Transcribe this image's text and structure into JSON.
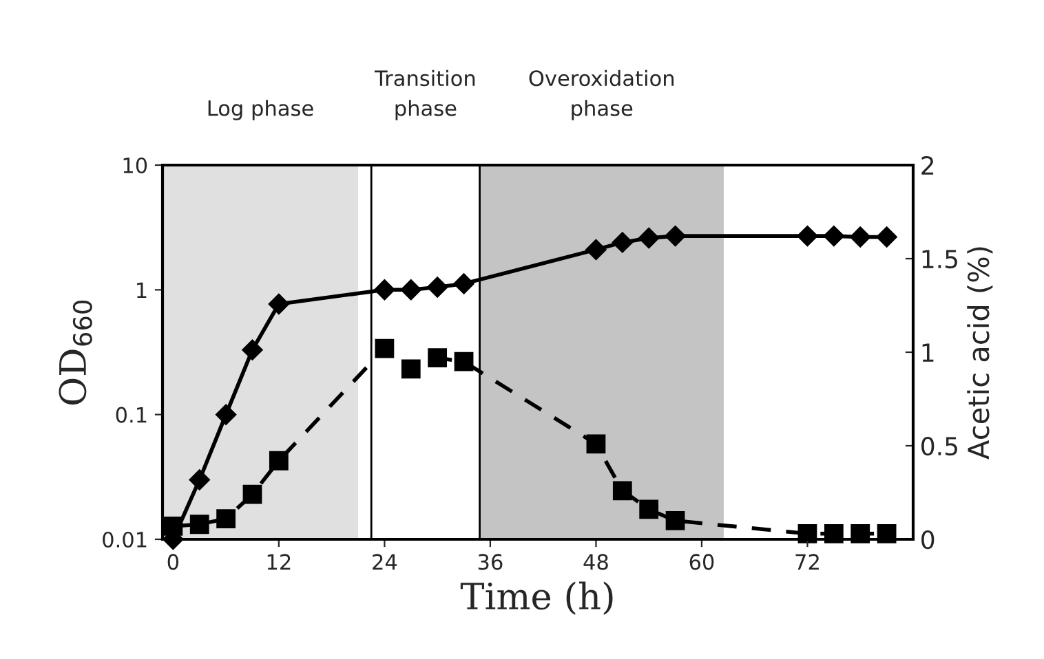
{
  "chart_data": {
    "type": "line",
    "xlabel": "Time (h)",
    "ylabel": "OD$_{660}$",
    "y2label": "Acetic acid (%)",
    "x": [
      0,
      3,
      6,
      9,
      12,
      24,
      27,
      30,
      33,
      48,
      51,
      54,
      57,
      72,
      75,
      78,
      81
    ],
    "series": [
      {
        "color": "#000000",
        "marker": "diamond",
        "line_style": "solid",
        "values": [
          0.01,
          0.03,
          0.1,
          0.33,
          0.77,
          1.0,
          1.0,
          1.05,
          1.12,
          2.1,
          2.4,
          2.6,
          2.7,
          2.7,
          2.7,
          2.65,
          2.65
        ]
      },
      {
        "color": "#000000",
        "marker": "square",
        "line_style": "dashed",
        "axis": "y2",
        "values": [
          0.07,
          0.08,
          0.11,
          0.24,
          0.42,
          1.02,
          0.91,
          0.97,
          0.95,
          0.51,
          0.26,
          0.16,
          0.1,
          0.03,
          0.03,
          0.03,
          0.03
        ]
      }
    ],
    "log": "y",
    "xlim": [
      -1.2,
      84
    ],
    "xticks": [
      0,
      12,
      24,
      36,
      48,
      60,
      72
    ],
    "ylim": [
      0.01,
      10
    ],
    "yticks": [
      0.01,
      0.1,
      1,
      10
    ],
    "y2lim": [
      0,
      2
    ],
    "y2ticks": [
      0,
      0.5,
      1,
      1.5,
      2
    ],
    "bands": [
      {
        "axis": "x",
        "from": -1.2,
        "to": 21,
        "label": "Log phase",
        "color": "#e0e0e0"
      },
      {
        "axis": "x",
        "from": 34.8,
        "to": 62.5,
        "label": "Overoxidation phase",
        "color": "#c4c4c4"
      }
    ],
    "annotations": [
      "Transition phase"
    ],
    "ref_lines": [
      {
        "axis": "x",
        "value": 22.5
      },
      {
        "axis": "x",
        "value": 34.8
      }
    ],
    "grid": false,
    "legend": false
  }
}
